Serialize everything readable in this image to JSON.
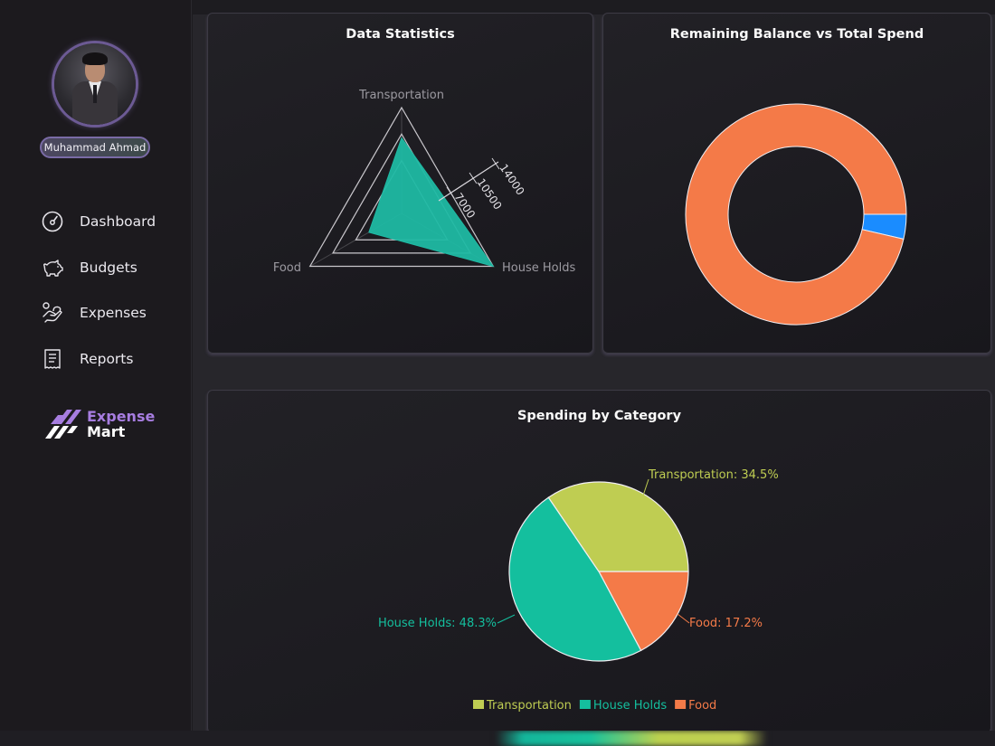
{
  "user": {
    "name": "Muhammad Ahmad"
  },
  "sidebar": {
    "items": [
      {
        "label": "Dashboard",
        "icon": "gauge-icon"
      },
      {
        "label": "Budgets",
        "icon": "piggy-bank-icon"
      },
      {
        "label": "Expenses",
        "icon": "hand-coin-icon"
      },
      {
        "label": "Reports",
        "icon": "receipt-icon"
      }
    ]
  },
  "logo": {
    "line1": "Expense",
    "line2": "Mart",
    "accent": "#a77de0"
  },
  "colors": {
    "transportation": "#bfcd52",
    "house_holds": "#14bf9e",
    "food": "#f47a48",
    "remaining": "#1a8cff",
    "spend": "#f47a48",
    "radar_fill": "#1fb9a3"
  },
  "cards": {
    "radar": {
      "title": "Data Statistics"
    },
    "donut": {
      "title": "Remaining Balance vs Total Spend"
    },
    "pie": {
      "title": "Spending by Category"
    }
  },
  "chart_data": [
    {
      "type": "radar",
      "title": "Data Statistics",
      "categories": [
        "Transportation",
        "House Holds",
        "Food"
      ],
      "values": [
        10000,
        14000,
        5000
      ],
      "ticks": [
        "7000",
        "10500",
        "14000"
      ],
      "rlim": [
        0,
        14000
      ]
    },
    {
      "type": "pie",
      "subtype": "doughnut",
      "title": "Remaining Balance vs Total Spend",
      "categories": [
        "Remaining Balance",
        "Total Spend"
      ],
      "values": [
        3.6,
        96.4
      ],
      "colors": [
        "#1a8cff",
        "#f47a48"
      ]
    },
    {
      "type": "pie",
      "title": "Spending by Category",
      "categories": [
        "Transportation",
        "House Holds",
        "Food"
      ],
      "values": [
        34.5,
        48.3,
        17.2
      ],
      "labels": [
        "Transportation: 34.5%",
        "House Holds: 48.3%",
        "Food: 17.2%"
      ],
      "legend": [
        "Transportation",
        "House Holds",
        "Food"
      ],
      "legend_position": "bottom",
      "colors": [
        "#bfcd52",
        "#14bf9e",
        "#f47a48"
      ]
    }
  ]
}
